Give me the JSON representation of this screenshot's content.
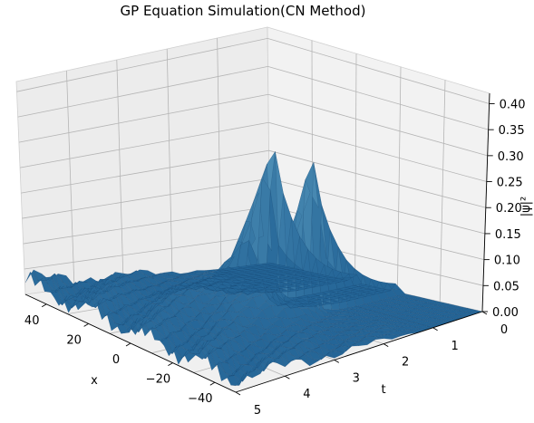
{
  "chart_data": {
    "type": "surface3d",
    "title": "GP Equation Simulation(CN Method)",
    "xlabel": "x",
    "tlabel": "t",
    "zlabel": "|ψ|²",
    "x_ticks": [
      40,
      20,
      0,
      -20,
      -40
    ],
    "t_ticks": [
      5,
      4,
      3,
      2,
      1,
      0
    ],
    "z_ticks": [
      "0.00",
      "0.05",
      "0.10",
      "0.15",
      "0.20",
      "0.25",
      "0.30",
      "0.35",
      "0.40"
    ],
    "x_range": [
      -50,
      50
    ],
    "t_range": [
      0,
      5
    ],
    "z_range": [
      0,
      0.42
    ],
    "surface_color": "#2b6ea3",
    "peaks": [
      {
        "x": -10,
        "t": 1.6,
        "z": 0.4
      },
      {
        "x": 10,
        "t": 1.6,
        "z": 0.4
      }
    ]
  }
}
